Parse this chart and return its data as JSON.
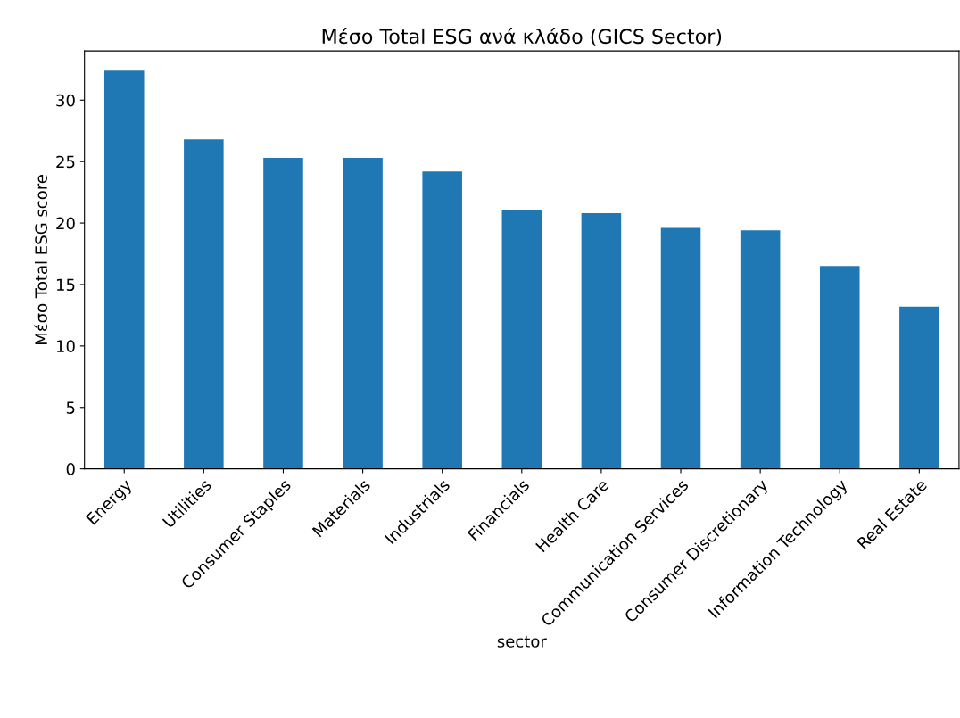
{
  "chart_data": {
    "type": "bar",
    "title": "Μέσο Total ESG ανά κλάδο (GICS Sector)",
    "xlabel": "sector",
    "ylabel": "Μέσο Total ESG score",
    "categories": [
      "Energy",
      "Utilities",
      "Consumer Staples",
      "Materials",
      "Industrials",
      "Financials",
      "Health Care",
      "Communication Services",
      "Consumer Discretionary",
      "Information Technology",
      "Real Estate"
    ],
    "values": [
      32.4,
      26.8,
      25.3,
      25.3,
      24.2,
      21.1,
      20.8,
      19.6,
      19.4,
      16.5,
      13.2
    ],
    "color": "#1f77b4",
    "ylim": [
      0,
      34
    ],
    "yticks": [
      0,
      5,
      10,
      15,
      20,
      25,
      30
    ],
    "grid": false
  }
}
